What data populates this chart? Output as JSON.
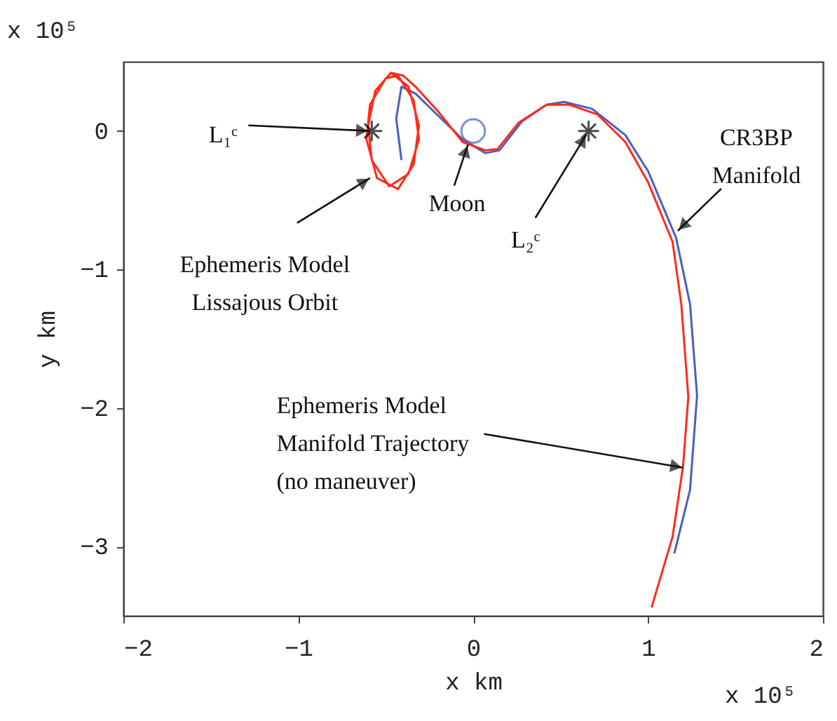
{
  "chart_data": {
    "type": "line",
    "xlabel": "x km",
    "ylabel": "y km",
    "xlim": [
      -2,
      2
    ],
    "ylim": [
      -3.5,
      0.5
    ],
    "xticks": [
      -2,
      -1,
      0,
      1,
      2
    ],
    "yticks": [
      -3,
      -2,
      -1,
      0
    ],
    "grid": false,
    "series": [
      {
        "color": "#4a5fc1",
        "line_style": "solid",
        "x": [
          -0.41,
          -0.44,
          -0.41,
          -0.33,
          -0.2,
          -0.06,
          0.07,
          0.15,
          0.28,
          0.42,
          0.52,
          0.68,
          0.87,
          1.0,
          1.16,
          1.24,
          1.28,
          1.24,
          1.15
        ],
        "values": [
          -0.21,
          0.09,
          0.32,
          0.27,
          0.11,
          -0.06,
          -0.16,
          -0.14,
          0.07,
          0.19,
          0.21,
          0.16,
          -0.03,
          -0.29,
          -0.77,
          -1.25,
          -1.91,
          -2.59,
          -3.05
        ]
      },
      {
        "color": "#ff2a1a",
        "line_style": "solid",
        "x": [
          -0.47,
          -0.56,
          -0.6,
          -0.58,
          -0.48,
          -0.37,
          -0.31,
          -0.34,
          -0.43,
          -0.5,
          -0.59,
          -0.61,
          -0.55,
          -0.43,
          -0.34,
          -0.31,
          -0.37,
          -0.47,
          -0.4,
          -0.33,
          -0.2,
          -0.06,
          0.07,
          0.14,
          0.26,
          0.42,
          0.55,
          0.71,
          0.87,
          1.0,
          1.14,
          1.19,
          1.23,
          1.2,
          1.14,
          1.02
        ],
        "values": [
          0.42,
          0.29,
          0.04,
          -0.21,
          -0.4,
          -0.31,
          -0.06,
          0.22,
          0.4,
          0.38,
          0.19,
          -0.06,
          -0.34,
          -0.42,
          -0.24,
          0.04,
          0.32,
          0.42,
          0.4,
          0.32,
          0.14,
          -0.08,
          -0.14,
          -0.13,
          0.06,
          0.19,
          0.19,
          0.12,
          -0.08,
          -0.37,
          -0.8,
          -1.25,
          -1.92,
          -2.42,
          -2.93,
          -3.44
        ]
      },
      {
        "type": "scatter",
        "color": "#000000",
        "marker": "cross",
        "x": [
          -0.58,
          0.66
        ],
        "values": [
          0,
          0
        ]
      },
      {
        "type": "scatter",
        "color": "#4a5fc1",
        "marker": "circle",
        "x": [
          0
        ],
        "values": [
          0
        ]
      }
    ],
    "annotations": [
      {
        "text": "L₁ᶜ",
        "x": -0.58,
        "y": 0
      },
      {
        "text": "Ephemeris Model\nLissajous Orbit",
        "x": -0.59,
        "y": -0.34
      },
      {
        "text": "Moon",
        "x": -0.02,
        "y": -0.06
      },
      {
        "text": "L₂ᶜ",
        "x": 0.66,
        "y": 0
      },
      {
        "text": "CR3BP\nManifold",
        "x": 1.17,
        "y": -0.72
      },
      {
        "text": "Ephemeris Model\nManifold Trajectory\n(no maneuver)",
        "x": 1.2,
        "y": -2.43
      },
      "x 10⁵",
      "x 10⁵"
    ]
  }
}
